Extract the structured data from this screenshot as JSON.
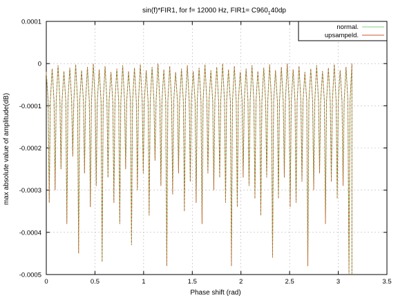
{
  "chart_data": {
    "type": "line",
    "title": "sin(f)*FIR1, for f= 12000 Hz, FIR1= C960",
    "title_subscript": "1",
    "title_suffix": "40dp",
    "xlabel": "Phase shift (rad)",
    "ylabel": "max absolute value of amplitude(dB)",
    "xlim": [
      0,
      3.5
    ],
    "ylim": [
      -0.0005,
      0.0001
    ],
    "x_ticks": [
      "0",
      "0.5",
      "1",
      "1.5",
      "2",
      "2.5",
      "3",
      "3.5"
    ],
    "y_ticks": [
      "0.0001",
      "0",
      "-0.0001",
      "-0.0002",
      "-0.0003",
      "-0.0004",
      "-0.0005"
    ],
    "grid": true,
    "legend_position": "top-right",
    "series": [
      {
        "name": "normal.",
        "color": "#7fd17f"
      },
      {
        "name": "upsampeld.",
        "color": "#c85a28"
      }
    ],
    "trace": {
      "x_start": 0,
      "x_end": 3.14,
      "lobes": 52,
      "peak_range": [
        -2e-05,
        0.0
      ],
      "notch_values": [
        -0.00033,
        -0.0003,
        -0.00025,
        -0.00038,
        -0.00022,
        -0.00045,
        -0.00026,
        -0.00034,
        -0.00029,
        -0.00047,
        -0.00027,
        -0.00033,
        -0.00038,
        -0.00025,
        -0.00043,
        -0.0003,
        -0.00026,
        -0.00036,
        -0.00023,
        -0.00029,
        -0.00048,
        -0.00031,
        -0.00026,
        -0.00035,
        -0.00028,
        -0.00033,
        -0.00038,
        -0.00026,
        -0.0003,
        -0.00027,
        -0.00033,
        -0.00048,
        -0.00034,
        -0.00027,
        -0.00029,
        -0.00032,
        -0.00036,
        -0.00027,
        -0.00046,
        -0.00032,
        -0.00027,
        -0.00034,
        -0.00033,
        -0.00028,
        -0.00048,
        -0.0003,
        -0.00026,
        -0.00038,
        -0.00028,
        -0.00032,
        -0.00029,
        -0.0005
      ]
    }
  }
}
